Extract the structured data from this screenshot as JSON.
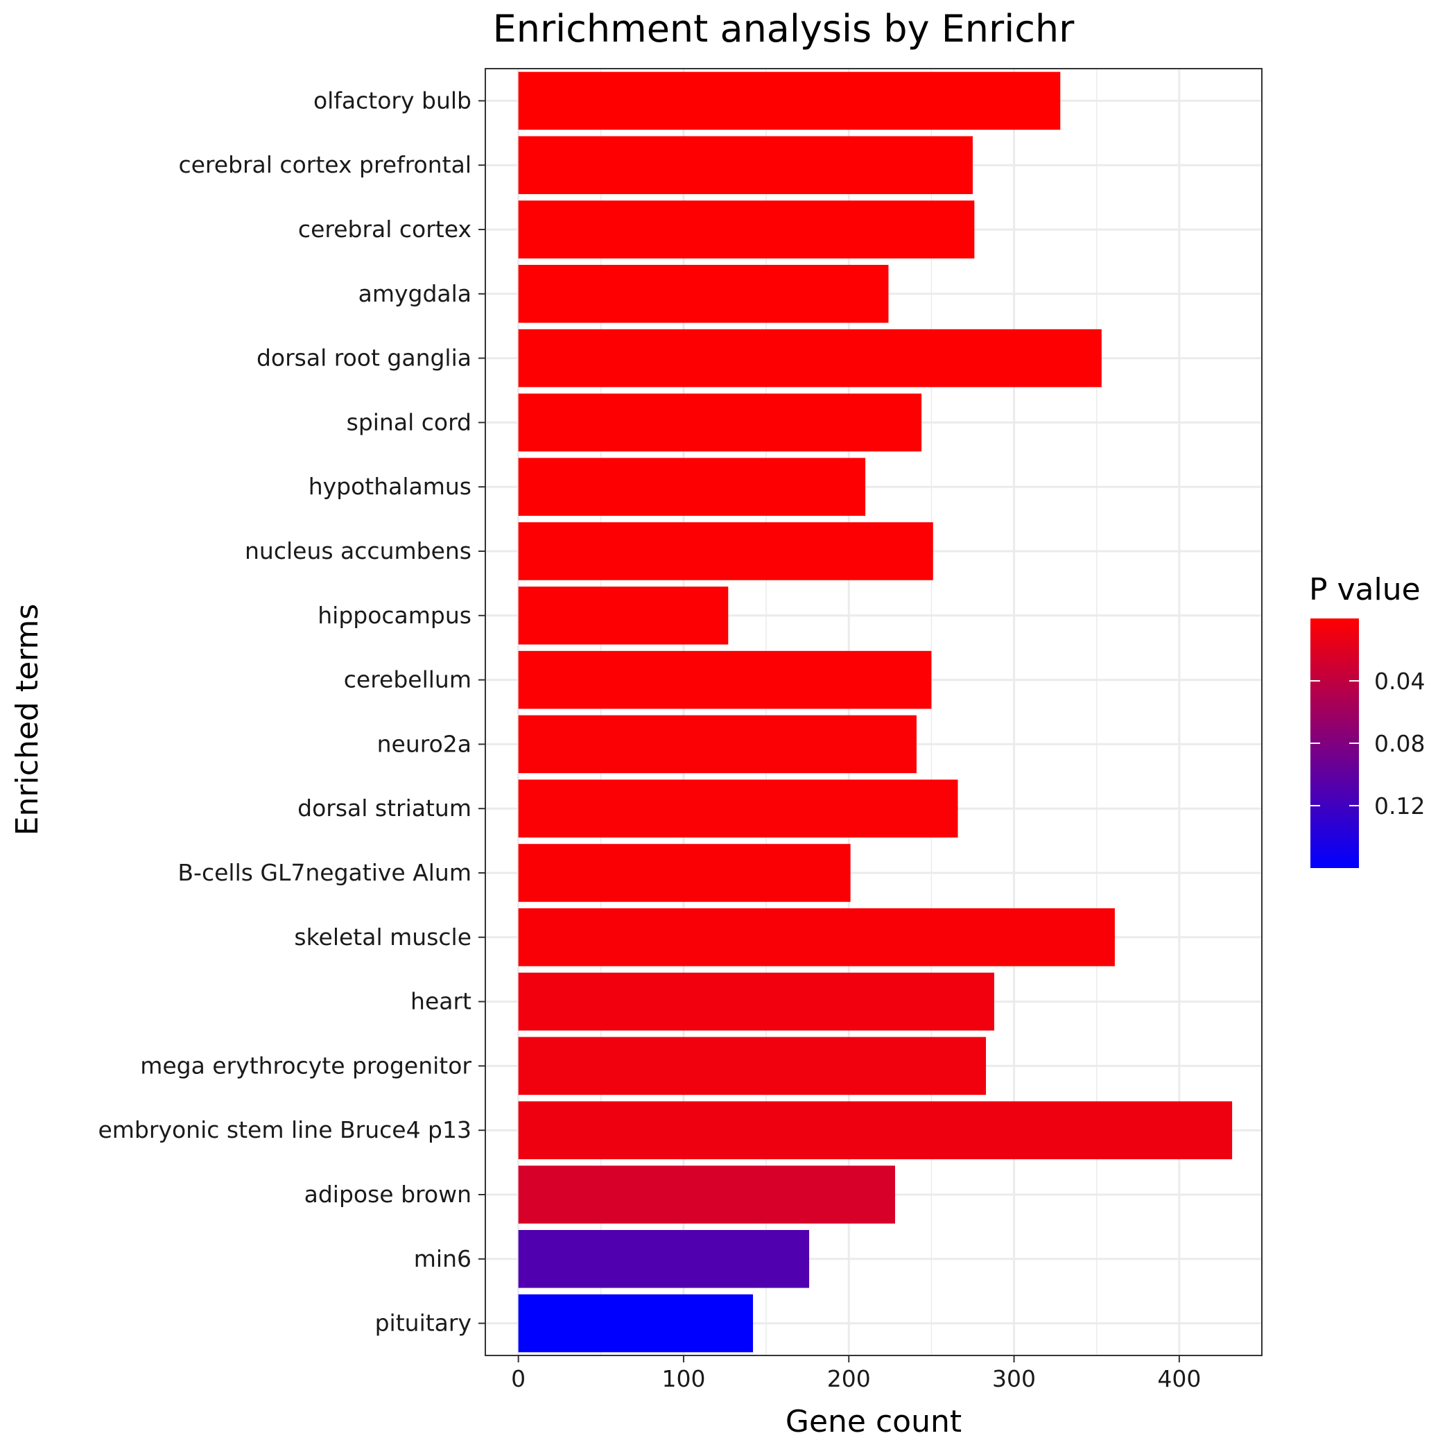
{
  "chart_data": {
    "type": "bar",
    "orientation": "horizontal",
    "title": "Enrichment analysis by Enrichr",
    "xlabel": "Gene count",
    "ylabel": "Enriched terms",
    "xlim": [
      -20,
      450
    ],
    "x_ticks": [
      0,
      100,
      200,
      300,
      400
    ],
    "grid": true,
    "categories": [
      "olfactory bulb",
      "cerebral cortex prefrontal",
      "cerebral cortex",
      "amygdala",
      "dorsal root ganglia",
      "spinal cord",
      "hypothalamus",
      "nucleus accumbens",
      "hippocampus",
      "cerebellum",
      "neuro2a",
      "dorsal striatum",
      "B-cells GL7negative Alum",
      "skeletal muscle",
      "heart",
      "mega erythrocyte progenitor",
      "embryonic stem line Bruce4 p13",
      "adipose brown",
      "min6",
      "pituitary"
    ],
    "values": [
      328,
      275,
      276,
      224,
      353,
      244,
      210,
      251,
      127,
      250,
      241,
      266,
      201,
      361,
      288,
      283,
      432,
      228,
      176,
      142
    ],
    "p_values": [
      0.0003,
      0.0005,
      0.0006,
      0.0008,
      0.001,
      0.0012,
      0.0014,
      0.0016,
      0.0018,
      0.002,
      0.0022,
      0.0025,
      0.003,
      0.004,
      0.008,
      0.009,
      0.01,
      0.025,
      0.11,
      0.16
    ],
    "legend": {
      "title": "P value",
      "position": "right",
      "ticks": [
        0.04,
        0.08,
        0.12
      ],
      "tick_labels": [
        "0.04",
        "0.08",
        "0.12"
      ],
      "range": [
        0,
        0.16
      ],
      "color_low": "#ff0000",
      "color_high": "#0000ff"
    }
  }
}
